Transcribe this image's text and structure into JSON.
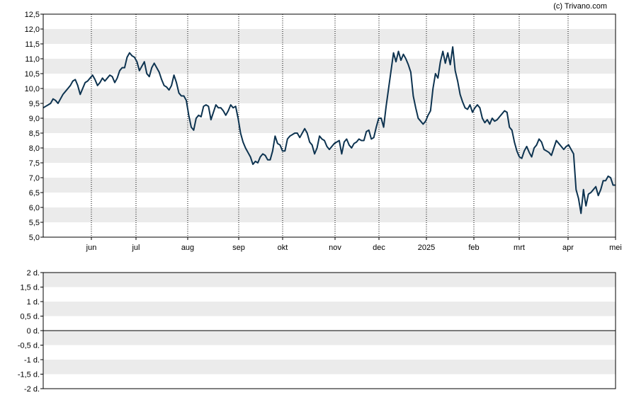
{
  "copyright": "(c) Trivano.com",
  "colors": {
    "line": "#0d3350",
    "band": "#ebebeb",
    "axis": "#000000",
    "grid": "#000000",
    "background": "#ffffff"
  },
  "chart_data": [
    {
      "type": "line",
      "title": "",
      "xlabel": "",
      "ylabel": "",
      "ylim": [
        5.0,
        12.5
      ],
      "y_ticks": [
        "5,0",
        "5,5",
        "6,0",
        "6,5",
        "7,0",
        "7,5",
        "8,0",
        "8,5",
        "9,0",
        "9,5",
        "10,0",
        "10,5",
        "11,0",
        "11,5",
        "12,0",
        "12,5"
      ],
      "x_ticks": [
        "jun",
        "jul",
        "aug",
        "sep",
        "okt",
        "nov",
        "dec",
        "2025",
        "feb",
        "mrt",
        "apr",
        "mei"
      ],
      "grid": "horizontal bands and dotted vertical lines at month starts",
      "legend": "none",
      "series": [
        {
          "values": [
            9.35,
            9.4,
            9.45,
            9.5,
            9.65,
            9.6,
            9.5,
            9.65,
            9.8,
            9.9,
            10.0,
            10.1,
            10.25,
            10.3,
            10.1,
            9.8,
            10.0,
            10.2,
            10.25,
            10.35,
            10.45,
            10.3,
            10.1,
            10.2,
            10.35,
            10.25,
            10.35,
            10.45,
            10.4,
            10.2,
            10.35,
            10.6,
            10.7,
            10.7,
            11.05,
            11.2,
            11.1,
            11.05,
            10.9,
            10.6,
            10.75,
            10.9,
            10.5,
            10.4,
            10.7,
            10.85,
            10.7,
            10.55,
            10.3,
            10.1,
            10.05,
            9.95,
            10.1,
            10.45,
            10.2,
            9.85,
            9.75,
            9.75,
            9.6,
            9.1,
            8.7,
            8.6,
            9.0,
            9.1,
            9.05,
            9.4,
            9.45,
            9.4,
            8.95,
            9.2,
            9.45,
            9.35,
            9.35,
            9.25,
            9.1,
            9.25,
            9.45,
            9.35,
            9.4,
            9.0,
            8.5,
            8.2,
            8.0,
            7.85,
            7.7,
            7.45,
            7.55,
            7.5,
            7.7,
            7.8,
            7.75,
            7.6,
            7.6,
            7.9,
            8.4,
            8.15,
            8.1,
            7.9,
            7.9,
            8.3,
            8.4,
            8.45,
            8.5,
            8.5,
            8.35,
            8.5,
            8.65,
            8.5,
            8.2,
            8.1,
            7.8,
            8.0,
            8.4,
            8.3,
            8.25,
            8.05,
            7.95,
            8.05,
            8.15,
            8.2,
            8.25,
            7.8,
            8.2,
            8.3,
            8.1,
            8.0,
            8.15,
            8.2,
            8.3,
            8.25,
            8.25,
            8.55,
            8.6,
            8.3,
            8.35,
            8.7,
            9.0,
            9.0,
            8.7,
            9.4,
            10.0,
            10.6,
            11.2,
            10.9,
            11.25,
            10.95,
            11.15,
            11.0,
            10.8,
            10.55,
            9.75,
            9.35,
            9.0,
            8.9,
            8.8,
            8.9,
            9.1,
            9.25,
            10.0,
            10.5,
            10.35,
            10.9,
            11.25,
            10.85,
            11.2,
            10.8,
            11.4,
            10.6,
            10.25,
            9.8,
            9.55,
            9.35,
            9.3,
            9.45,
            9.2,
            9.35,
            9.45,
            9.35,
            9.0,
            8.85,
            8.95,
            8.8,
            9.0,
            8.9,
            8.95,
            9.05,
            9.15,
            9.25,
            9.2,
            8.7,
            8.6,
            8.2,
            7.9,
            7.7,
            7.65,
            7.9,
            8.05,
            7.85,
            7.7,
            8.0,
            8.1,
            8.3,
            8.2,
            7.95,
            7.9,
            7.85,
            7.75,
            8.0,
            8.25,
            8.15,
            8.05,
            7.95,
            8.05,
            8.1,
            7.95,
            7.8,
            6.6,
            6.3,
            5.8,
            6.6,
            6.05,
            6.45,
            6.5,
            6.6,
            6.7,
            6.4,
            6.6,
            6.9,
            6.9,
            7.05,
            7.0,
            6.75,
            6.75
          ]
        }
      ]
    },
    {
      "type": "line",
      "title": "",
      "ylim": [
        -2,
        2
      ],
      "y_ticks": [
        "-2 d.",
        "-1,5 d.",
        "-1 d.",
        "-0,5 d.",
        "0 d.",
        "0,5 d.",
        "1 d.",
        "1,5 d.",
        "2 d."
      ],
      "grid": "horizontal bands",
      "legend": "none",
      "series": [
        {
          "values": [
            0,
            0
          ]
        }
      ]
    }
  ]
}
